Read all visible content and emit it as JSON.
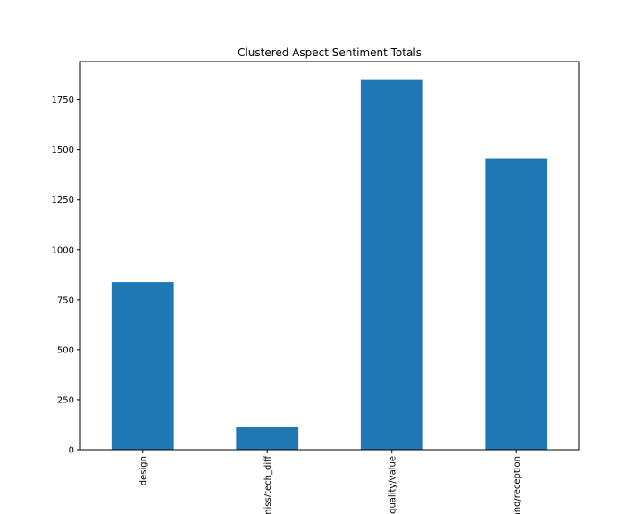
{
  "chart_data": {
    "type": "bar",
    "title": "Clustered Aspect Sentiment Totals",
    "xlabel": "",
    "ylabel": "",
    "categories": [
      "design",
      "miss/tech_diff",
      "quality/value",
      "brand/reception"
    ],
    "values": [
      838,
      112,
      1848,
      1456
    ],
    "ylim": [
      0,
      1940
    ],
    "yticks": [
      0,
      250,
      500,
      750,
      1000,
      1250,
      1500,
      1750
    ],
    "ytick_labels": [
      "0",
      "250",
      "500",
      "750",
      "1000",
      "1250",
      "1500",
      "1750"
    ],
    "grid": false,
    "legend": "none",
    "bar_color": "#1f77b4"
  }
}
